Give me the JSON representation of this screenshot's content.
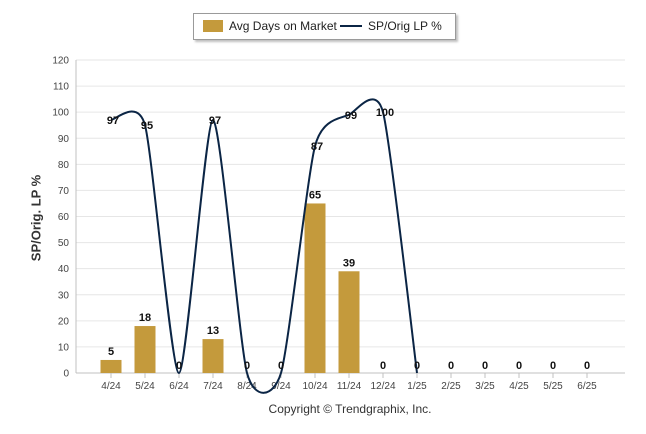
{
  "colors": {
    "bar": "#C49A3C",
    "line": "#0B2545",
    "grid": "#e6e6e6",
    "axis": "#c0c0c0"
  },
  "footer": "Copyright © Trendgraphix, Inc.",
  "chart_data": {
    "type": "bar+line",
    "categories": [
      "4/24",
      "5/24",
      "6/24",
      "7/24",
      "8/24",
      "9/24",
      "10/24",
      "11/24",
      "12/24",
      "1/25",
      "2/25",
      "3/25",
      "4/25",
      "5/25",
      "6/25"
    ],
    "series": [
      {
        "name": "Avg Days on Market",
        "type": "bar",
        "values": [
          5,
          18,
          0,
          13,
          0,
          0,
          65,
          39,
          0,
          0,
          0,
          0,
          0,
          0,
          0
        ],
        "labels": [
          "5",
          "18",
          "0",
          "13",
          "0",
          "0",
          "65",
          "39",
          "0",
          "0",
          "0",
          "0",
          "0",
          "0",
          "0"
        ]
      },
      {
        "name": "SP/Orig LP %",
        "type": "line",
        "values": [
          97,
          95,
          0,
          97,
          0,
          0,
          87,
          99,
          100,
          0,
          null,
          null,
          null,
          null,
          null
        ],
        "labels": [
          "97",
          "95",
          "",
          "97",
          "",
          "",
          "87",
          "99",
          "100",
          "",
          "",
          "",
          "",
          "",
          ""
        ]
      }
    ],
    "ylabel": "SP/Orig. LP %",
    "yticks": [
      "0",
      "10",
      "20",
      "30",
      "40",
      "50",
      "60",
      "70",
      "80",
      "90",
      "100",
      "110",
      "120"
    ],
    "ylim": [
      0,
      120
    ],
    "grid": true,
    "legend_position": "top-center"
  }
}
